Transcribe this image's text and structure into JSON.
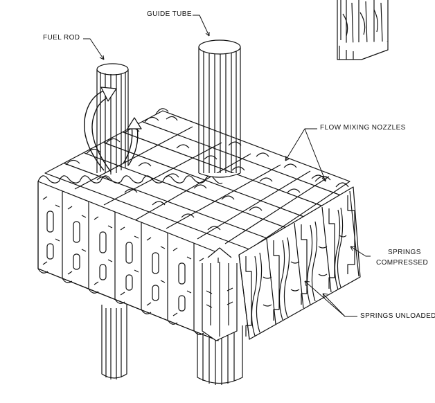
{
  "labels": {
    "fuel_rod": "FUEL ROD",
    "guide_tube": "GUIDE TUBE",
    "flow_mixing_nozzles": "FLOW MIXING NOZZLES",
    "springs_compressed_line1": "SPRINGS",
    "springs_compressed_line2": "COMPRESSED",
    "springs_unloaded": "SPRINGS UNLOADED"
  },
  "colors": {
    "ink": "#111111",
    "paper": "#ffffff",
    "shade": "#d9d9d9"
  }
}
